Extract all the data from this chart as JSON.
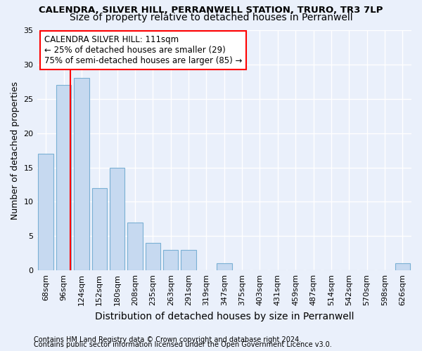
{
  "title1": "CALENDRA, SILVER HILL, PERRANWELL STATION, TRURO, TR3 7LP",
  "title2": "Size of property relative to detached houses in Perranwell",
  "xlabel": "Distribution of detached houses by size in Perranwell",
  "ylabel": "Number of detached properties",
  "categories": [
    "68sqm",
    "96sqm",
    "124sqm",
    "152sqm",
    "180sqm",
    "208sqm",
    "235sqm",
    "263sqm",
    "291sqm",
    "319sqm",
    "347sqm",
    "375sqm",
    "403sqm",
    "431sqm",
    "459sqm",
    "487sqm",
    "514sqm",
    "542sqm",
    "570sqm",
    "598sqm",
    "626sqm"
  ],
  "values": [
    17,
    27,
    28,
    12,
    15,
    7,
    4,
    3,
    3,
    0,
    1,
    0,
    0,
    0,
    0,
    0,
    0,
    0,
    0,
    0,
    1
  ],
  "bar_color": "#c6d9f0",
  "bar_edgecolor": "#7ab0d4",
  "red_line_x": 1.37,
  "annotation_line1": "CALENDRA SILVER HILL: 111sqm",
  "annotation_line2": "← 25% of detached houses are smaller (29)",
  "annotation_line3": "75% of semi-detached houses are larger (85) →",
  "annotation_box_color": "white",
  "annotation_box_edgecolor": "red",
  "red_line_color": "red",
  "ylim": [
    0,
    35
  ],
  "yticks": [
    0,
    5,
    10,
    15,
    20,
    25,
    30,
    35
  ],
  "footer1": "Contains HM Land Registry data © Crown copyright and database right 2024.",
  "footer2": "Contains public sector information licensed under the Open Government Licence v3.0.",
  "background_color": "#eaf0fb",
  "grid_color": "#ffffff",
  "title1_fontsize": 9.5,
  "title2_fontsize": 10,
  "tick_fontsize": 8,
  "ylabel_fontsize": 9,
  "xlabel_fontsize": 10,
  "annotation_fontsize": 8.5,
  "footer_fontsize": 7
}
